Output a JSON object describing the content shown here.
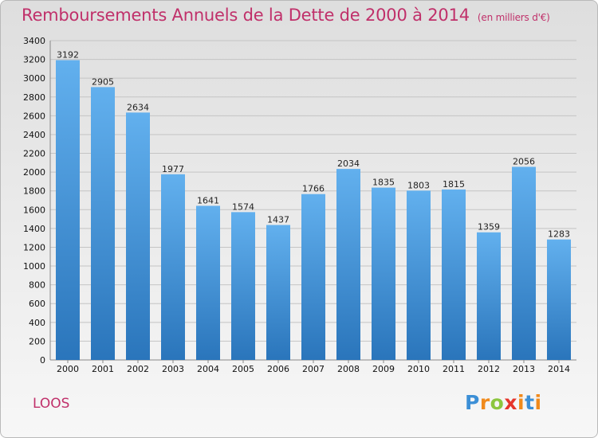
{
  "header": {
    "title": "Remboursements Annuels de la Dette de 2000 à 2014",
    "unit": "(en milliers d'€)"
  },
  "footer": {
    "town": "LOOS",
    "logo_text": "Proxiti"
  },
  "colors": {
    "title": "#c0306a",
    "bar_top": "#62b0ee",
    "bar_bottom": "#2a75bb"
  },
  "chart_data": {
    "type": "bar",
    "title": "Remboursements Annuels de la Dette de 2000 à 2014",
    "categories": [
      "2000",
      "2001",
      "2002",
      "2003",
      "2004",
      "2005",
      "2006",
      "2007",
      "2008",
      "2009",
      "2010",
      "2011",
      "2012",
      "2013",
      "2014"
    ],
    "values": [
      3192,
      2905,
      2634,
      1977,
      1641,
      1574,
      1437,
      1766,
      2034,
      1835,
      1803,
      1815,
      1359,
      2056,
      1283
    ],
    "ylim": [
      0,
      3400
    ],
    "ytick_step": 200,
    "grid": true
  }
}
